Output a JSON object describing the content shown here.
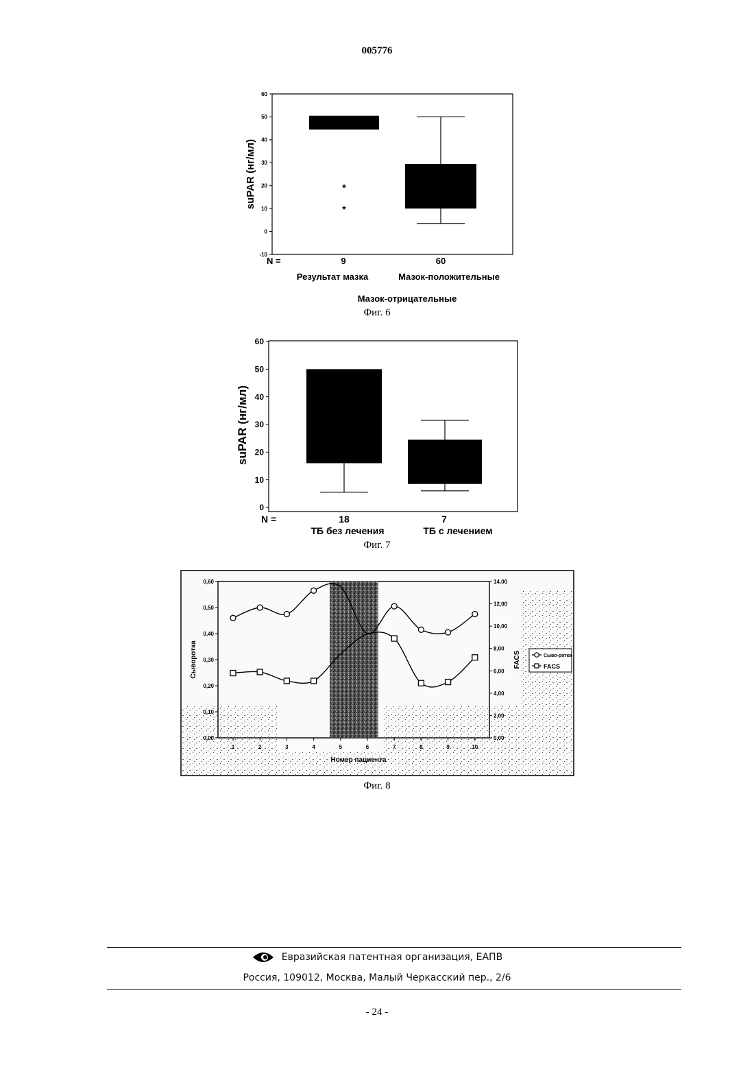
{
  "header": {
    "doc_number": "005776"
  },
  "figures": {
    "fig6": {
      "caption": "Фиг. 6"
    },
    "fig7": {
      "caption": "Фиг. 7"
    },
    "fig8": {
      "caption": "Фиг. 8"
    }
  },
  "chart_data": [
    {
      "type": "box",
      "ylabel": "suPAR (нг/мл)",
      "ylim": [
        -10,
        60
      ],
      "yticks": [
        "60",
        "50",
        "40",
        "30",
        "20",
        "10",
        "0",
        "-10"
      ],
      "n_label": "N =",
      "xlabel": "Результат мазка",
      "sub_label": "Мазок-отрицательные",
      "groups": [
        {
          "name": "",
          "n": "9",
          "q1": 44.5,
          "median": 47,
          "q3": 50.5,
          "whisker_low": null,
          "whisker_high": null,
          "outliers": [
            19.5,
            10
          ],
          "outlier_glyph": "*"
        },
        {
          "name": "Мазок-положительные",
          "n": "60",
          "q1": 10,
          "median": 20,
          "q3": 29.5,
          "whisker_low": 3.5,
          "whisker_high": 50
        }
      ]
    },
    {
      "type": "box",
      "ylabel": "suPAR (нг/мл)",
      "ylim": [
        0,
        60
      ],
      "yticks": [
        "60",
        "50",
        "40",
        "30",
        "20",
        "10",
        "0"
      ],
      "n_label": "N =",
      "groups": [
        {
          "name": "ТБ без лечения",
          "n": "18",
          "q1": 16,
          "median": 30,
          "q3": 50,
          "whisker_low": 5.5,
          "whisker_high": null
        },
        {
          "name": "ТБ с лечением",
          "n": "7",
          "q1": 8.5,
          "median": 15,
          "q3": 24.5,
          "whisker_low": 6,
          "whisker_high": 31.5
        }
      ]
    },
    {
      "type": "line",
      "xlabel": "Номер пациента",
      "ylabel_left": "Сыворотка",
      "ylabel_right": "FACS",
      "ylim_left": [
        0,
        0.6
      ],
      "ylim_right": [
        0,
        14
      ],
      "yticks_left": [
        "0,60",
        "0,50",
        "0,40",
        "0,30",
        "0,20",
        "0,10",
        "0,00"
      ],
      "yticks_right": [
        "14,00",
        "12,00",
        "10,00",
        "8,00",
        "6,00",
        "4,00",
        "2,00",
        "0,00"
      ],
      "x": [
        "1",
        "2",
        "3",
        "4",
        "5",
        "6",
        "7",
        "8",
        "9",
        "10"
      ],
      "shaded_region": [
        4.6,
        6.4
      ],
      "legend": {
        "position": "right",
        "entries": [
          "Сыво-ротка",
          "FACS"
        ]
      },
      "series": [
        {
          "name": "Сыво-ротка",
          "axis": "left",
          "marker": "circle",
          "values": [
            0.46,
            0.5,
            0.475,
            0.565,
            0.58,
            0.4,
            0.505,
            0.415,
            0.405,
            0.475
          ]
        },
        {
          "name": "FACS",
          "axis": "right",
          "marker": "square",
          "values": [
            5.8,
            5.9,
            5.1,
            5.1,
            7.5,
            9.3,
            8.9,
            4.9,
            5.0,
            7.2
          ]
        }
      ]
    }
  ],
  "footer": {
    "org": "Евразийская патентная организация, ЕАПВ",
    "address": "Россия, 109012, Москва, Малый Черкасский пер., 2/6",
    "logo": "eye-logo-icon"
  },
  "page_number": "- 24 -"
}
